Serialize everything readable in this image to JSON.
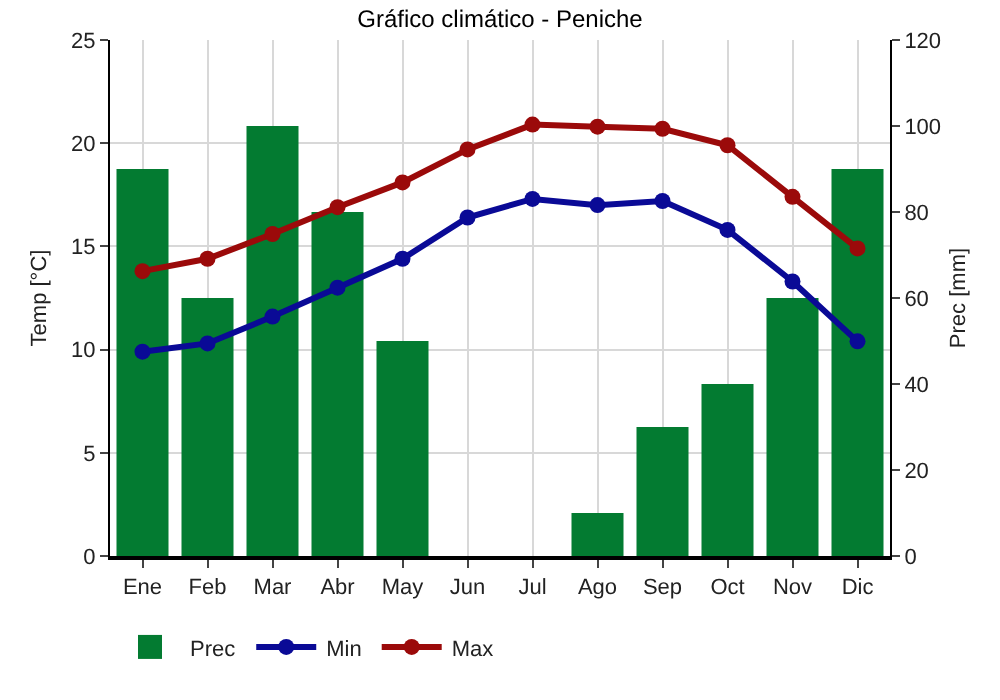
{
  "chart_data": {
    "type": "bar",
    "title": "Gráfico climático - Peniche",
    "ylabel": "Temp [°C]",
    "y2label": "Prec [mm]",
    "categories": [
      "Ene",
      "Feb",
      "Mar",
      "Abr",
      "May",
      "Jun",
      "Jul",
      "Ago",
      "Sep",
      "Oct",
      "Nov",
      "Dic"
    ],
    "series": [
      {
        "name": "Prec",
        "axis": "y2",
        "color": "#037b31",
        "values": [
          90,
          60,
          100,
          80,
          50,
          0,
          0,
          10,
          30,
          40,
          60,
          90
        ]
      },
      {
        "name": "Min",
        "type": "line",
        "color": "#0a0a96",
        "values": [
          9.9,
          10.3,
          11.6,
          13.0,
          14.4,
          16.4,
          17.3,
          17.0,
          17.2,
          15.8,
          13.3,
          10.4
        ]
      },
      {
        "name": "Max",
        "type": "line",
        "color": "#9b0a0a",
        "values": [
          13.8,
          14.4,
          15.6,
          16.9,
          18.1,
          19.7,
          20.9,
          20.8,
          20.7,
          19.9,
          17.4,
          14.9
        ]
      }
    ],
    "ylim": [
      0,
      25
    ],
    "yticks": [
      0,
      5,
      10,
      15,
      20,
      25
    ],
    "y2lim": [
      0,
      120
    ],
    "y2ticks": [
      0,
      20,
      40,
      60,
      80,
      100,
      120
    ],
    "grid": true,
    "legend": "bottom left",
    "marker": "circle",
    "line_style": "solid"
  }
}
